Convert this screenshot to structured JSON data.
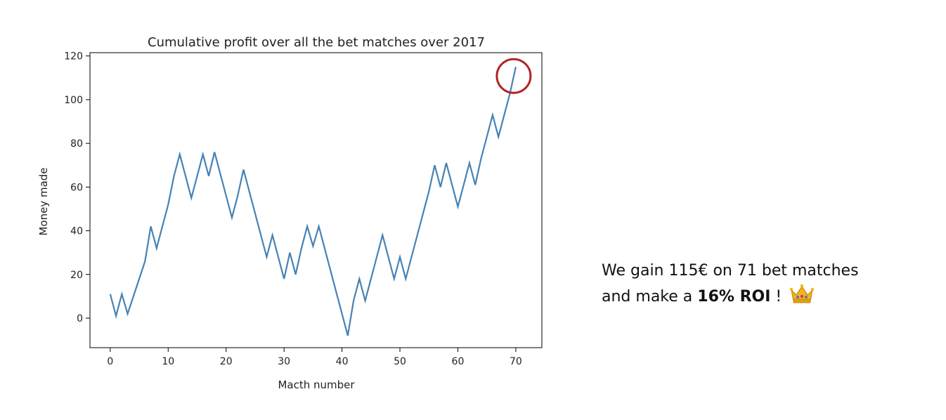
{
  "chart_data": {
    "type": "line",
    "title": "Cumulative profit over all the bet matches over 2017",
    "xlabel": "Macth number",
    "ylabel": "Money made",
    "xlim": [
      -3.5,
      74.5
    ],
    "ylim": [
      -13.5,
      121.5
    ],
    "x_ticks": [
      0,
      10,
      20,
      30,
      40,
      50,
      60,
      70
    ],
    "y_ticks": [
      0,
      20,
      40,
      60,
      80,
      100,
      120
    ],
    "grid": false,
    "line_color": "#4682b4",
    "series": [
      {
        "x": [
          0,
          1,
          2,
          3,
          4,
          5,
          6,
          7,
          8,
          9,
          10,
          11,
          12,
          13,
          14,
          15,
          16,
          17,
          18,
          19,
          20,
          21,
          22,
          23,
          24,
          25,
          26,
          27,
          28,
          29,
          30,
          31,
          32,
          33,
          34,
          35,
          36,
          37,
          38,
          39,
          40,
          41,
          42,
          43,
          44,
          45,
          46,
          47,
          48,
          49,
          50,
          51,
          52,
          53,
          54,
          55,
          56,
          57,
          58,
          59,
          60,
          61,
          62,
          63,
          64,
          65,
          66,
          67,
          68,
          69,
          70
        ],
        "values": [
          11,
          1,
          11,
          2,
          10,
          18,
          26,
          42,
          32,
          42,
          52,
          65,
          75,
          65,
          55,
          65,
          75,
          65,
          76,
          66,
          56,
          46,
          56,
          68,
          58,
          48,
          38,
          28,
          38,
          28,
          18,
          30,
          20,
          32,
          42,
          33,
          42,
          32,
          22,
          12,
          2,
          -8,
          8,
          18,
          8,
          18,
          28,
          38,
          28,
          18,
          28,
          18,
          28,
          38,
          48,
          58,
          70,
          60,
          71,
          61,
          51,
          61,
          71,
          61,
          73,
          83,
          93,
          83,
          93,
          103,
          115
        ]
      }
    ],
    "annotation": {
      "type": "circle",
      "x": 70,
      "y": 115,
      "color": "#b22222"
    }
  },
  "caption": {
    "line1": "We gain 115€ on 71 bet matches",
    "line2_prefix": "and make a ",
    "line2_bold": "16% ROI",
    "line2_suffix": " !",
    "emoji_icon": "crown-icon"
  }
}
